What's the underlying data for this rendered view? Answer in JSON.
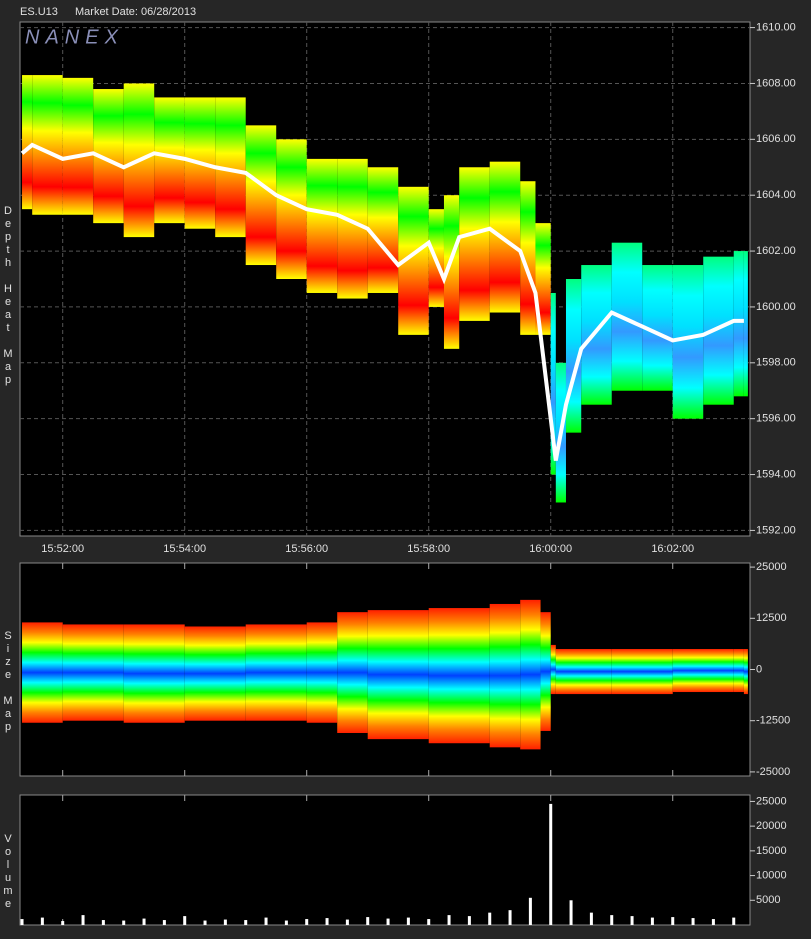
{
  "header": {
    "symbol": "ES.U13",
    "market_date": "Market Date: 06/28/2013",
    "watermark": "NANEX"
  },
  "chart_data": [
    {
      "type": "depth",
      "ylabel": "Depth Heat Map",
      "x": [
        "15:51:20",
        "15:51:30",
        "15:52:00",
        "15:52:30",
        "15:53:00",
        "15:53:30",
        "15:54:00",
        "15:54:30",
        "15:55:00",
        "15:55:30",
        "15:56:00",
        "15:56:30",
        "15:57:00",
        "15:57:30",
        "15:58:00",
        "15:58:15",
        "15:58:30",
        "15:59:00",
        "15:59:30",
        "15:59:45",
        "16:00:00",
        "16:00:05",
        "16:00:15",
        "16:00:30",
        "16:01:00",
        "16:01:30",
        "16:02:00",
        "16:02:30",
        "16:03:00",
        "16:03:10"
      ],
      "series": [
        {
          "color": "#ffffff",
          "values": [
            1605.5,
            1605.8,
            1605.3,
            1605.5,
            1605.0,
            1605.5,
            1605.3,
            1605.0,
            1604.8,
            1604.0,
            1603.5,
            1603.3,
            1602.8,
            1601.5,
            1602.3,
            1601.0,
            1602.5,
            1602.8,
            1602.0,
            1600.5,
            1596.0,
            1594.5,
            1596.5,
            1598.5,
            1599.8,
            1599.3,
            1598.8,
            1599.0,
            1599.5,
            1599.5
          ]
        },
        {
          "values": [
            1608.3,
            1608.3,
            1608.2,
            1607.8,
            1608.0,
            1607.5,
            1607.5,
            1607.5,
            1606.5,
            1606.0,
            1605.3,
            1605.3,
            1605.0,
            1604.3,
            1603.5,
            1604.0,
            1605.0,
            1605.2,
            1604.5,
            1603.0,
            1600.5,
            1598.0,
            1601.0,
            1601.5,
            1602.3,
            1601.5,
            1601.5,
            1601.8,
            1602.0,
            1602.0
          ]
        },
        {
          "values": [
            1603.5,
            1603.3,
            1603.3,
            1603.0,
            1602.5,
            1603.0,
            1602.8,
            1602.5,
            1601.5,
            1601.0,
            1600.5,
            1600.3,
            1600.5,
            1599.0,
            1600.0,
            1598.5,
            1599.5,
            1599.8,
            1599.0,
            1599.0,
            1594.0,
            1593.0,
            1595.5,
            1596.5,
            1597.0,
            1597.0,
            1596.0,
            1596.5,
            1596.8,
            1596.8
          ]
        }
      ],
      "heat_colors": [
        "#ffff00",
        "#00ff00",
        "#ffff00",
        "#ff8000",
        "#ff0000",
        "#ffff00"
      ],
      "heat_colors_after": [
        "#00ff80",
        "#00ffff",
        "#00e0ff",
        "#3399ff",
        "#00ffff",
        "#00ff00"
      ],
      "xlim": [
        "15:51:18",
        "16:03:16"
      ],
      "xticks": [
        "15:52:00",
        "15:54:00",
        "15:56:00",
        "15:58:00",
        "16:00:00",
        "16:02:00"
      ],
      "ylim": [
        1591.8,
        1610.2
      ],
      "yticks": [
        {
          "value": 1610,
          "label": "1610.00"
        },
        {
          "value": 1608,
          "label": "1608.00"
        },
        {
          "value": 1606,
          "label": "1606.00"
        },
        {
          "value": 1604,
          "label": "1604.00"
        },
        {
          "value": 1602,
          "label": "1602.00"
        },
        {
          "value": 1600,
          "label": "1600.00"
        },
        {
          "value": 1598,
          "label": "1598.00"
        },
        {
          "value": 1596,
          "label": "1596.00"
        },
        {
          "value": 1594,
          "label": "1594.00"
        },
        {
          "value": 1592,
          "label": "1592.00"
        }
      ],
      "grid": true
    },
    {
      "type": "band",
      "ylabel": "Size Map",
      "x": [
        "15:51:20",
        "15:52:00",
        "15:53:00",
        "15:54:00",
        "15:55:00",
        "15:56:00",
        "15:56:30",
        "15:57:00",
        "15:58:00",
        "15:59:00",
        "15:59:30",
        "15:59:50",
        "16:00:00",
        "16:00:05",
        "16:01:00",
        "16:02:00",
        "16:03:00",
        "16:03:10"
      ],
      "series": [
        {
          "values": [
            11500,
            11000,
            11000,
            10500,
            11000,
            11500,
            14000,
            14500,
            15000,
            16000,
            17000,
            14000,
            6000,
            5000,
            5000,
            5000,
            5000,
            5000
          ]
        },
        {
          "values": [
            -13000,
            -12500,
            -13000,
            -12500,
            -12500,
            -13000,
            -15500,
            -17000,
            -18000,
            -19000,
            -19500,
            -15000,
            -6000,
            -6000,
            -6000,
            -5500,
            -5500,
            -6000
          ]
        }
      ],
      "heat_colors": [
        "#ff2000",
        "#ff8000",
        "#ffff00",
        "#00ff00",
        "#00ffff",
        "#0040ff",
        "#00ffff",
        "#00ff00",
        "#ffff00",
        "#ff8000",
        "#ff2000"
      ],
      "xlim": [
        "15:51:18",
        "16:03:16"
      ],
      "ylim": [
        -26000,
        26000
      ],
      "yticks": [
        25000,
        12500,
        0,
        -12500,
        -25000
      ]
    },
    {
      "type": "bar",
      "ylabel": "Volume",
      "x": [
        "15:51:20",
        "15:51:40",
        "15:52:00",
        "15:52:20",
        "15:52:40",
        "15:53:00",
        "15:53:20",
        "15:53:40",
        "15:54:00",
        "15:54:20",
        "15:54:40",
        "15:55:00",
        "15:55:20",
        "15:55:40",
        "15:56:00",
        "15:56:20",
        "15:56:40",
        "15:57:00",
        "15:57:20",
        "15:57:40",
        "15:58:00",
        "15:58:20",
        "15:58:40",
        "15:59:00",
        "15:59:20",
        "15:59:40",
        "16:00:00",
        "16:00:20",
        "16:00:40",
        "16:01:00",
        "16:01:20",
        "16:01:40",
        "16:02:00",
        "16:02:20",
        "16:02:40",
        "16:03:00"
      ],
      "values": [
        1200,
        1500,
        800,
        2000,
        1000,
        900,
        1300,
        1000,
        1800,
        900,
        1100,
        1000,
        1500,
        900,
        1200,
        1400,
        1100,
        1600,
        1300,
        1500,
        1200,
        2000,
        1800,
        2500,
        3000,
        5500,
        24500,
        5000,
        2500,
        2000,
        1800,
        1500,
        1600,
        1400,
        1200,
        1500
      ],
      "color": "#ffffff",
      "xlim": [
        "15:51:18",
        "16:03:16"
      ],
      "ylim": [
        0,
        26300
      ],
      "yticks": [
        25000,
        20000,
        15000,
        10000,
        5000
      ]
    }
  ]
}
